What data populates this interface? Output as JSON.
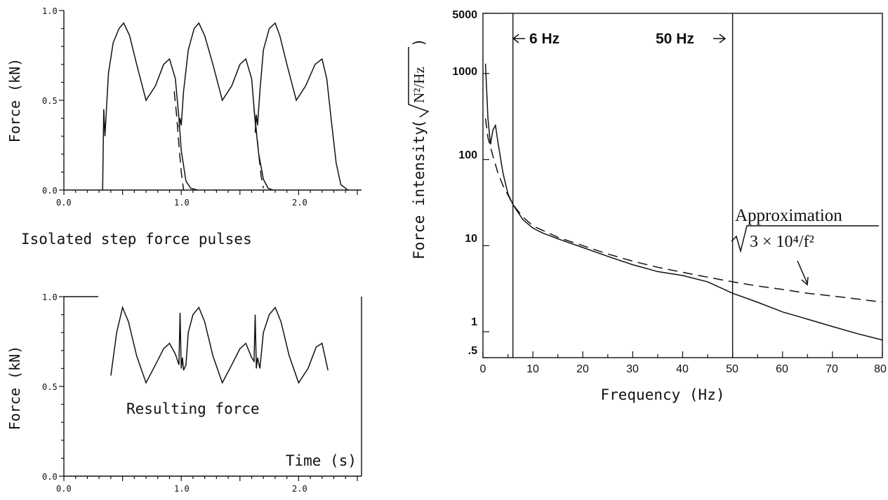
{
  "chart_data": [
    {
      "type": "line",
      "title": "Isolated step force pulses",
      "xlabel": "",
      "ylabel": "Force (kN)",
      "xlim": [
        0,
        2.5
      ],
      "ylim": [
        0,
        1.0
      ],
      "x_ticks": [
        "0.0",
        "1.0",
        "2.0"
      ],
      "y_ticks": [
        "0.0",
        "0.5",
        "1.0"
      ],
      "series": [
        {
          "style": "solid",
          "x": [
            0.33,
            0.34,
            0.35,
            0.36,
            0.38,
            0.42,
            0.47,
            0.51,
            0.56,
            0.62,
            0.7,
            0.78,
            0.85,
            0.9,
            0.95,
            0.98,
            1.0,
            1.04,
            1.08,
            1.14
          ],
          "y": [
            0.0,
            0.45,
            0.3,
            0.42,
            0.65,
            0.82,
            0.9,
            0.93,
            0.86,
            0.7,
            0.5,
            0.58,
            0.7,
            0.73,
            0.62,
            0.4,
            0.22,
            0.05,
            0.01,
            0.0
          ]
        },
        {
          "style": "solid",
          "x": [
            0.98,
            0.99,
            1.0,
            1.02,
            1.06,
            1.11,
            1.15,
            1.2,
            1.27,
            1.35,
            1.43,
            1.5,
            1.55,
            1.6,
            1.63,
            1.66,
            1.7,
            1.74,
            1.78
          ],
          "y": [
            0.35,
            0.4,
            0.36,
            0.55,
            0.78,
            0.9,
            0.93,
            0.86,
            0.7,
            0.5,
            0.58,
            0.7,
            0.73,
            0.62,
            0.38,
            0.2,
            0.06,
            0.01,
            0.0
          ]
        },
        {
          "style": "solid",
          "x": [
            1.63,
            1.64,
            1.65,
            1.67,
            1.7,
            1.75,
            1.8,
            1.84,
            1.9,
            1.98,
            2.06,
            2.14,
            2.2,
            2.24,
            2.28,
            2.32,
            2.36,
            2.42
          ],
          "y": [
            0.32,
            0.42,
            0.36,
            0.55,
            0.78,
            0.9,
            0.93,
            0.86,
            0.7,
            0.5,
            0.58,
            0.7,
            0.73,
            0.62,
            0.38,
            0.15,
            0.03,
            0.0
          ]
        },
        {
          "style": "dashed",
          "x": [
            0.94,
            0.96,
            0.98,
            1.0,
            1.02
          ],
          "y": [
            0.55,
            0.42,
            0.25,
            0.1,
            0.0
          ]
        },
        {
          "style": "dashed",
          "x": [
            1.62,
            1.64,
            1.66,
            1.68,
            1.7
          ],
          "y": [
            0.45,
            0.33,
            0.2,
            0.08,
            0.01
          ]
        }
      ]
    },
    {
      "type": "line",
      "title": "",
      "annotation": "Resulting force",
      "xlabel": "Time (s)",
      "ylabel": "Force (kN)",
      "xlim": [
        0,
        2.5
      ],
      "ylim": [
        0,
        1.0
      ],
      "x_ticks": [
        "0.0",
        "1.0",
        "2.0"
      ],
      "y_ticks": [
        "0.0",
        "0.5",
        "1.0"
      ],
      "series": [
        {
          "style": "solid",
          "x": [
            0.4,
            0.45,
            0.5,
            0.55,
            0.62,
            0.7,
            0.78,
            0.85,
            0.9,
            0.95,
            0.98,
            0.99,
            1.0,
            1.01,
            1.02,
            1.04,
            1.06,
            1.1,
            1.15,
            1.2,
            1.27,
            1.35,
            1.43,
            1.5,
            1.55,
            1.6,
            1.62,
            1.63,
            1.64,
            1.65,
            1.67,
            1.7,
            1.75,
            1.8,
            1.85,
            1.92,
            2.0,
            2.08,
            2.15,
            2.2,
            2.25
          ],
          "y": [
            0.56,
            0.8,
            0.94,
            0.86,
            0.67,
            0.52,
            0.62,
            0.71,
            0.74,
            0.68,
            0.62,
            0.91,
            0.6,
            0.66,
            0.59,
            0.62,
            0.8,
            0.9,
            0.94,
            0.86,
            0.67,
            0.52,
            0.62,
            0.71,
            0.74,
            0.66,
            0.64,
            0.9,
            0.6,
            0.66,
            0.6,
            0.8,
            0.9,
            0.94,
            0.86,
            0.67,
            0.52,
            0.6,
            0.72,
            0.74,
            0.59
          ]
        }
      ]
    },
    {
      "type": "line",
      "title": "",
      "xlabel": "Frequency (Hz)",
      "ylabel": "Force intensity",
      "ylabel_unit": "N²/Hz",
      "yscale": "log",
      "xlim": [
        0,
        80
      ],
      "ylim": [
        0.5,
        5000
      ],
      "x_ticks": [
        "0",
        "10",
        "20",
        "30",
        "40",
        "50",
        "60",
        "70",
        "80"
      ],
      "y_ticks": [
        ".5",
        "1",
        "10",
        "100",
        "1000",
        "5000"
      ],
      "vlines": [
        {
          "x": 6,
          "label": "6 Hz"
        },
        {
          "x": 50,
          "label": "50 Hz"
        }
      ],
      "annotation": "Approximation",
      "formula": "3 × 10⁴/f²",
      "series": [
        {
          "style": "solid",
          "x": [
            0.5,
            1,
            1.5,
            2,
            2.5,
            3,
            4,
            5,
            6,
            8,
            10,
            12,
            15,
            20,
            25,
            30,
            35,
            40,
            45,
            50,
            55,
            60,
            65,
            70,
            75,
            80
          ],
          "y": [
            1300,
            300,
            150,
            220,
            250,
            160,
            70,
            40,
            30,
            20,
            16,
            14,
            12,
            9.5,
            7.5,
            6,
            5,
            4.5,
            3.8,
            2.8,
            2.2,
            1.7,
            1.4,
            1.15,
            0.95,
            0.8
          ]
        },
        {
          "style": "dashed",
          "x": [
            0.5,
            1,
            2,
            3,
            4,
            6,
            8,
            10,
            15,
            20,
            25,
            30,
            35,
            40,
            45,
            50,
            55,
            60,
            65,
            70,
            75,
            80
          ],
          "y": [
            300,
            180,
            110,
            70,
            50,
            30,
            21.5,
            17,
            12.5,
            10,
            8,
            6.6,
            5.6,
            4.9,
            4.3,
            3.8,
            3.4,
            3.1,
            2.8,
            2.6,
            2.4,
            2.2
          ]
        }
      ]
    }
  ]
}
